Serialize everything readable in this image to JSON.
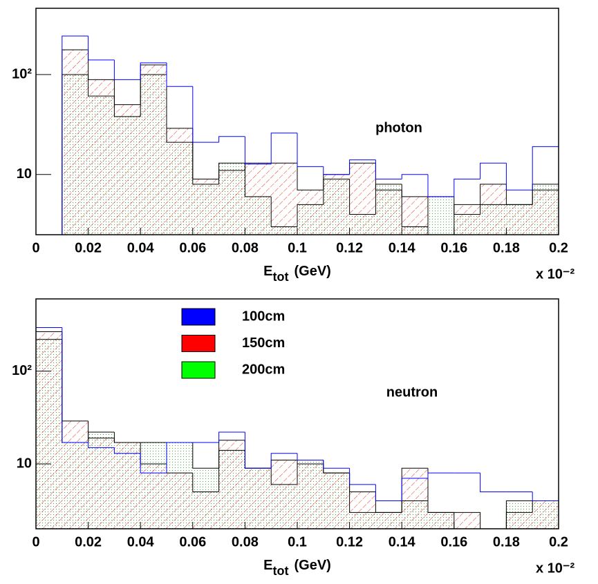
{
  "chart_data": [
    {
      "type": "histogram",
      "annotation": "photon",
      "xlabel": "E",
      "xlabel_subscript": "tot",
      "xlabel_unit": "(GeV)",
      "x_multiplier": "x 10⁻²",
      "bins": [
        0,
        0.01,
        0.02,
        0.03,
        0.04,
        0.05,
        0.06,
        0.07,
        0.08,
        0.09,
        0.1,
        0.11,
        0.12,
        0.13,
        0.14,
        0.15,
        0.16,
        0.17,
        0.18,
        0.19,
        0.2
      ],
      "series": [
        {
          "color": "#0000ff",
          "values": [
            null,
            243,
            140,
            89,
            131,
            76,
            21,
            24,
            12.7,
            26,
            12,
            10,
            14,
            9,
            10,
            6,
            9,
            13,
            7,
            19
          ]
        },
        {
          "color": "#ff0000",
          "values": [
            null,
            177,
            89,
            50,
            125,
            29,
            9,
            11,
            13,
            13,
            7,
            10,
            13,
            7,
            6,
            null,
            5,
            8,
            5,
            7
          ]
        },
        {
          "color": "#00ff00",
          "values": [
            null,
            100,
            61,
            38,
            100,
            21,
            8,
            13,
            6,
            3,
            5,
            9,
            4,
            8,
            3,
            6,
            4,
            5,
            5,
            8
          ]
        }
      ],
      "xlim": [
        0,
        0.2
      ],
      "xticks": [
        0,
        0.02,
        0.04,
        0.06,
        0.08,
        0.1,
        0.12,
        0.14,
        0.16,
        0.18,
        0.2
      ],
      "ylim": [
        2.5,
        460
      ],
      "yticks": [
        10,
        {
          "value": 100,
          "label": "10²"
        }
      ],
      "log_y": true
    },
    {
      "type": "histogram",
      "annotation": "neutron",
      "xlabel": "E",
      "xlabel_subscript": "tot",
      "xlabel_unit": "(GeV)",
      "x_multiplier": "x 10⁻²",
      "bins": [
        0,
        0.01,
        0.02,
        0.03,
        0.04,
        0.05,
        0.06,
        0.07,
        0.08,
        0.09,
        0.1,
        0.11,
        0.12,
        0.13,
        0.14,
        0.15,
        0.16,
        0.17,
        0.18,
        0.19,
        0.2
      ],
      "series": [
        {
          "name": "100cm",
          "color": "#0000ff",
          "values": [
            295,
            17,
            15,
            13,
            8,
            17,
            17,
            22,
            9,
            13,
            11,
            9,
            6,
            4,
            7,
            8,
            8,
            5,
            5,
            4
          ]
        },
        {
          "name": "150cm",
          "color": "#ff0000",
          "values": [
            266,
            29,
            19,
            17,
            10,
            8,
            5,
            18,
            9,
            11,
            10,
            8,
            5,
            3,
            9,
            3,
            3,
            null,
            3,
            4
          ]
        },
        {
          "name": "200cm",
          "color": "#00ff00",
          "values": [
            220,
            17,
            22,
            17,
            17,
            17,
            9,
            14,
            9,
            6,
            11,
            8,
            3,
            3,
            4,
            3,
            null,
            null,
            4,
            4
          ]
        }
      ],
      "xlim": [
        0,
        0.2
      ],
      "xticks": [
        0,
        0.02,
        0.04,
        0.06,
        0.08,
        0.1,
        0.12,
        0.14,
        0.16,
        0.18,
        0.2
      ],
      "ylim": [
        2,
        600
      ],
      "yticks": [
        10,
        {
          "value": 100,
          "label": "10²"
        }
      ],
      "log_y": true,
      "legend": "top-left"
    }
  ]
}
